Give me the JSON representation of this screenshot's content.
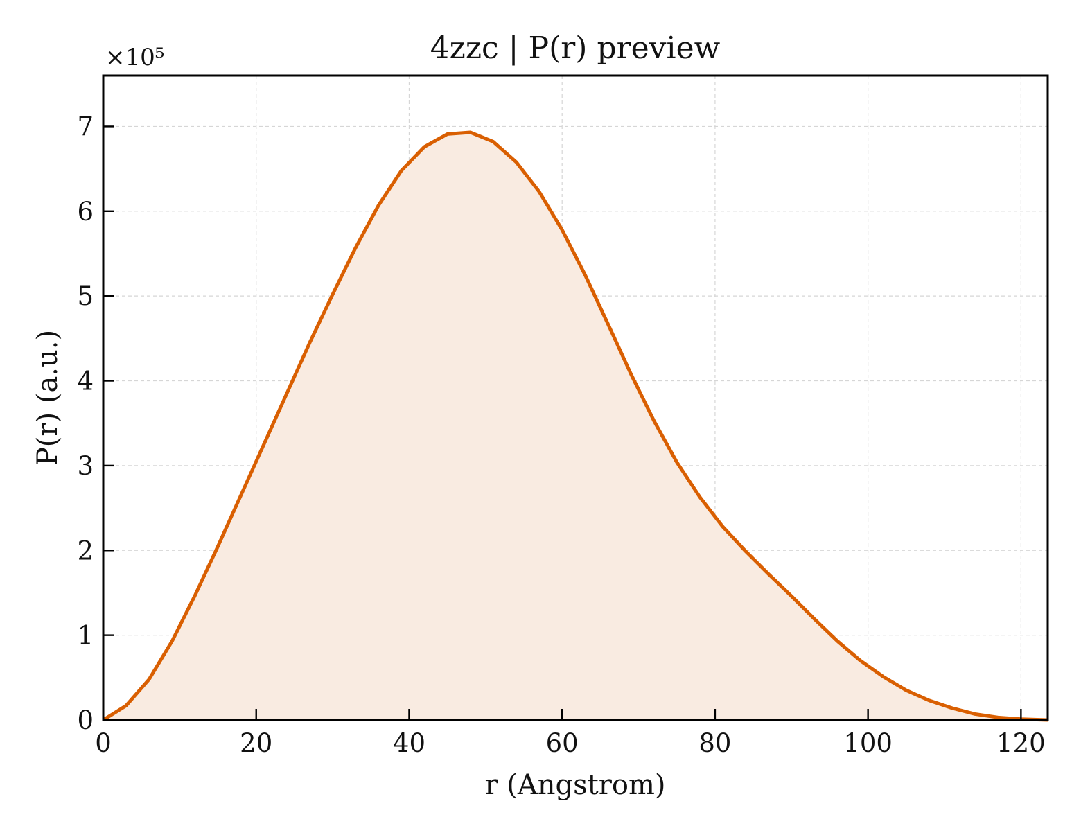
{
  "chart_data": {
    "type": "area",
    "title": "4zzc | P(r) preview",
    "xlabel": "r (Angstrom)",
    "ylabel": "P(r) (a.u.)",
    "y_scale_label": "×10⁵",
    "y_multiplier": 100000,
    "xlim": [
      0,
      123.5
    ],
    "ylim": [
      0,
      760000
    ],
    "xticks": [
      0,
      20,
      40,
      60,
      80,
      100,
      120
    ],
    "yticks": [
      0,
      100000,
      200000,
      300000,
      400000,
      500000,
      600000,
      700000
    ],
    "ytick_labels": [
      "0",
      "1",
      "2",
      "3",
      "4",
      "5",
      "6",
      "7"
    ],
    "grid": true,
    "legend": "none",
    "colors": {
      "line": "#d95f02",
      "fill": "#f9ebe1",
      "grid": "#d6d6d6",
      "axes": "#000000"
    },
    "series": [
      {
        "x": [
          0,
          3,
          6,
          9,
          12,
          15,
          18,
          21,
          24,
          27,
          30,
          33,
          36,
          39,
          42,
          45,
          48,
          51,
          54,
          57,
          60,
          63,
          66,
          69,
          72,
          75,
          78,
          81,
          84,
          87,
          90,
          93,
          96,
          99,
          102,
          105,
          108,
          111,
          114,
          117,
          120,
          123.5
        ],
        "y": [
          0,
          17000,
          48000,
          93000,
          147000,
          205000,
          265000,
          325000,
          385000,
          445000,
          502000,
          557000,
          607000,
          648000,
          676000,
          691000,
          693000,
          682000,
          658000,
          623000,
          578000,
          525000,
          467000,
          408000,
          353000,
          304000,
          263000,
          228000,
          199000,
          172000,
          146000,
          119000,
          93000,
          70000,
          51000,
          35000,
          23000,
          14000,
          7000,
          3000,
          1000,
          0
        ]
      }
    ]
  }
}
